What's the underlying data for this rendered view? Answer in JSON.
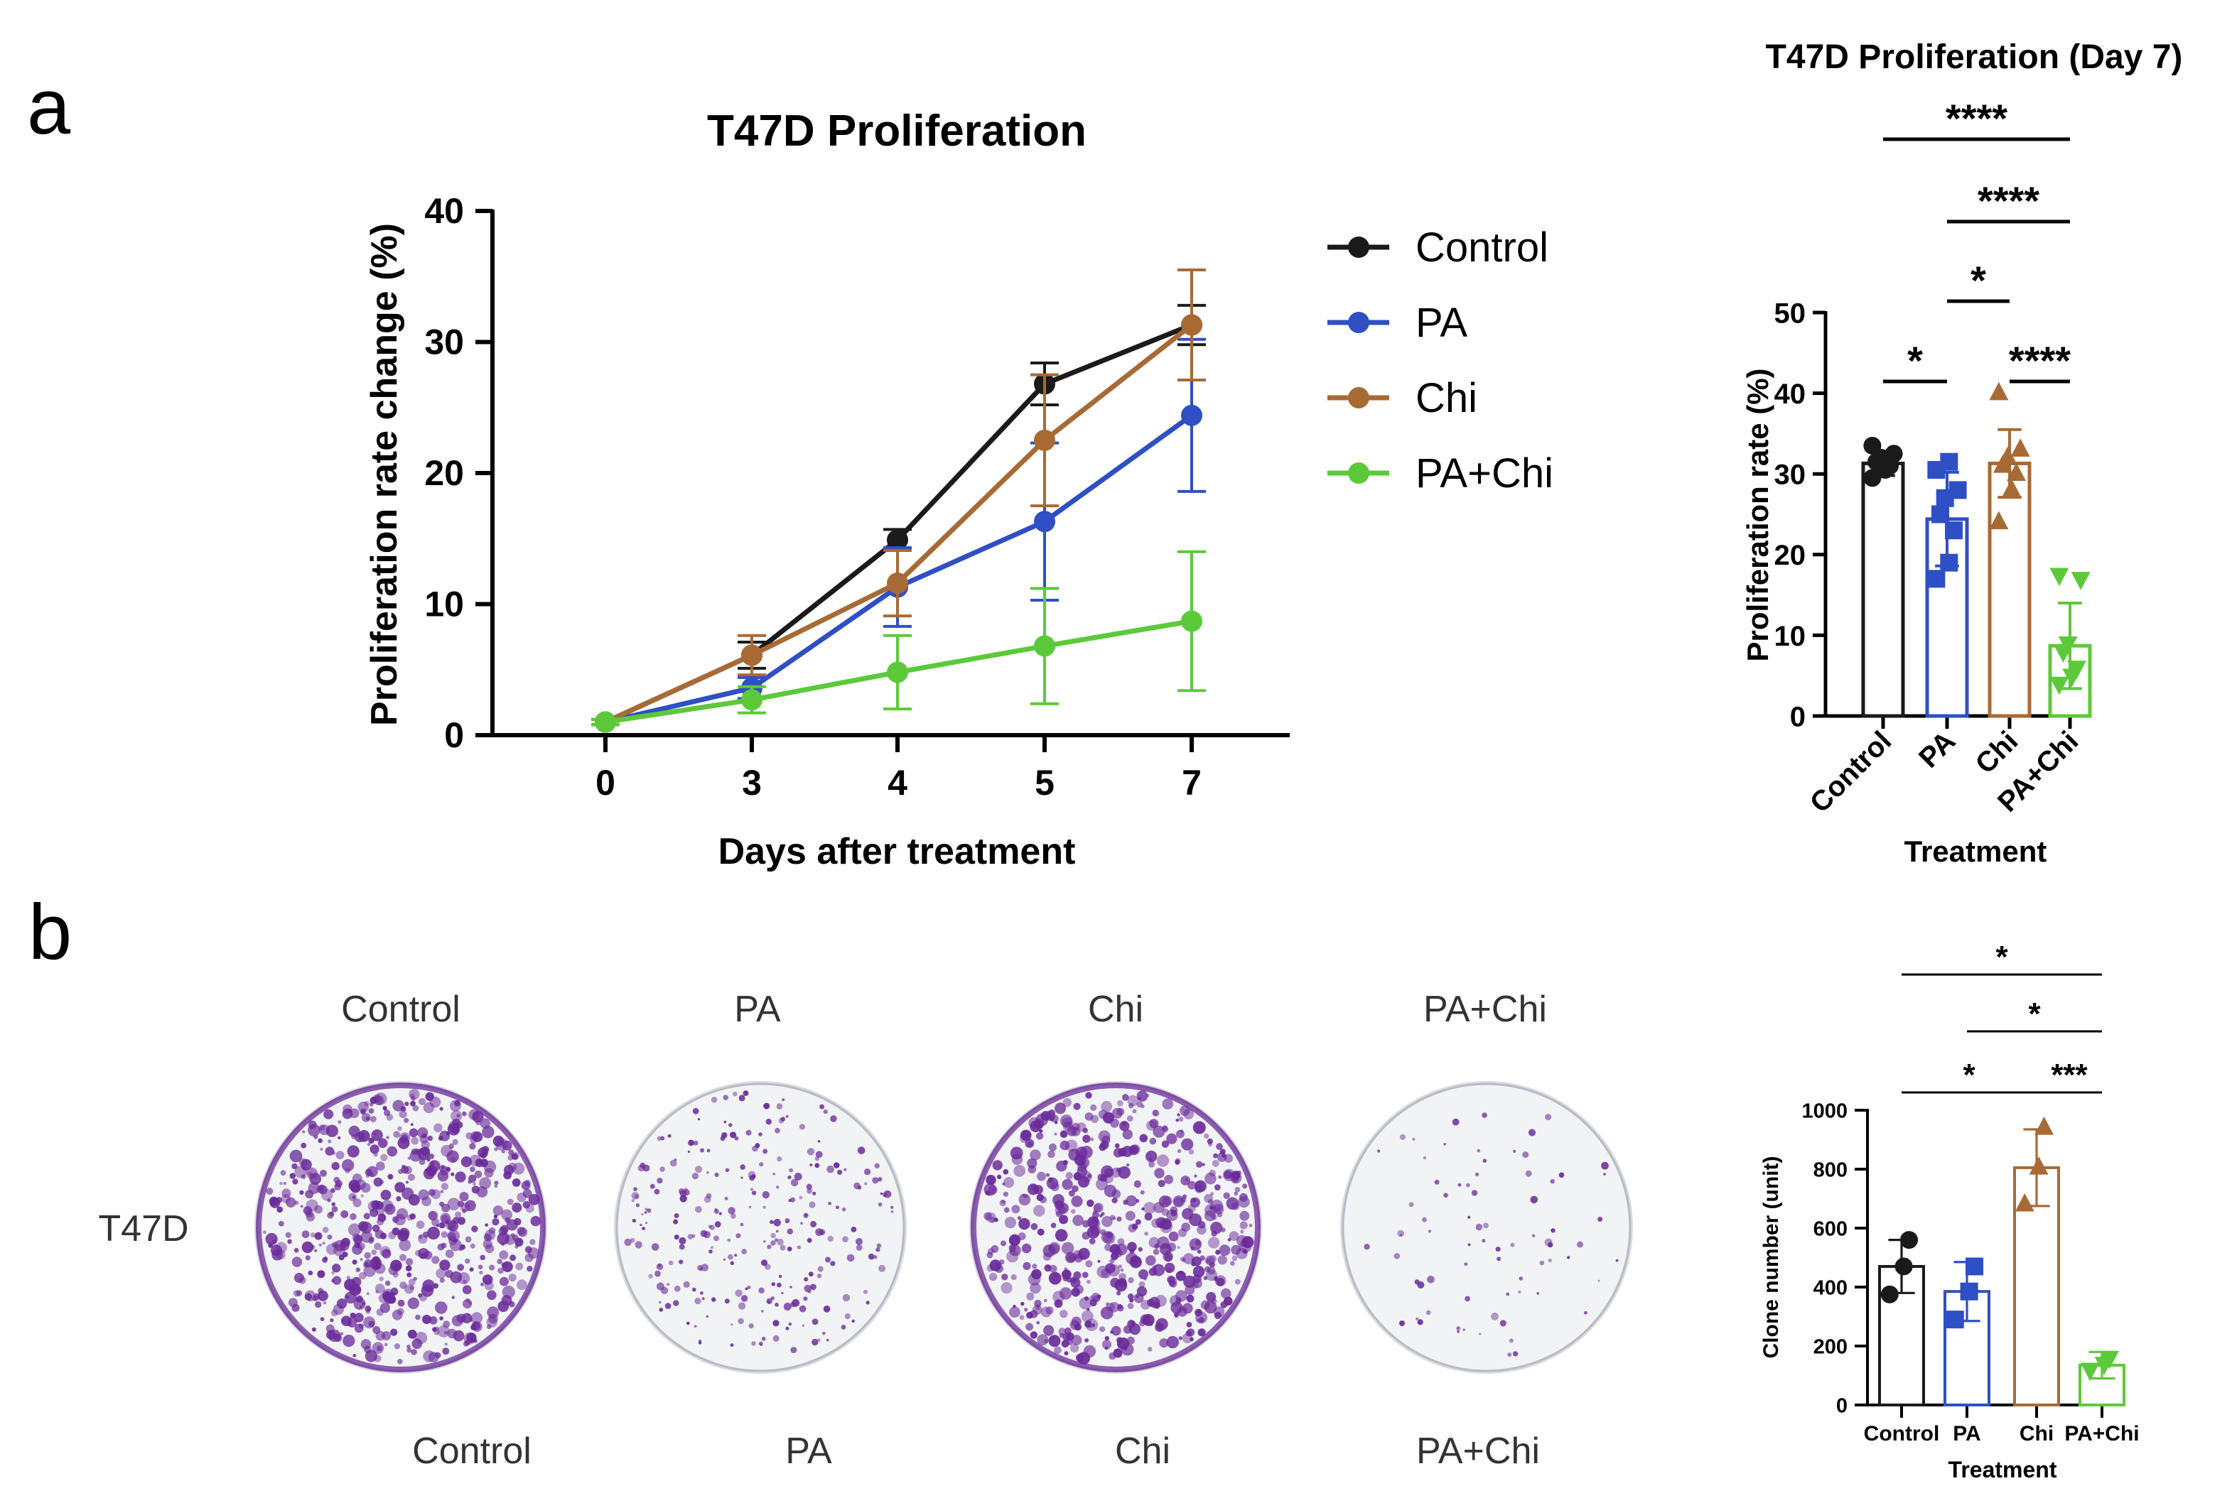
{
  "panel_labels": {
    "a": "a",
    "b": "b"
  },
  "colors": {
    "control": "#1a1a1a",
    "pa": "#2f4fc4",
    "chi": "#a86a35",
    "pachi": "#5cc93a",
    "dish_bg": "#f1f3f4",
    "dish_stain": "#6a2a9a"
  },
  "chart_data": [
    {
      "id": "line",
      "type": "line",
      "title": "T47D Proliferation",
      "xlabel": "Days after treatment",
      "ylabel": "Proliferation rate change (%)",
      "x": [
        "0",
        "3",
        "4",
        "5",
        "7"
      ],
      "ylim": [
        0,
        40
      ],
      "yticks": [
        "0",
        "10",
        "20",
        "30",
        "40"
      ],
      "series": [
        {
          "name": "Control",
          "color_key": "control",
          "values": [
            1,
            6.1,
            14.9,
            26.8,
            31.3
          ],
          "errors": [
            0.2,
            1.0,
            0.8,
            1.6,
            1.5
          ]
        },
        {
          "name": "PA",
          "color_key": "pa",
          "values": [
            1,
            3.6,
            11.3,
            16.3,
            24.4
          ],
          "errors": [
            0.2,
            0.8,
            3.0,
            6.0,
            5.8
          ]
        },
        {
          "name": "Chi",
          "color_key": "chi",
          "values": [
            1,
            6.1,
            11.6,
            22.5,
            31.3
          ],
          "errors": [
            0.2,
            1.5,
            2.5,
            5.0,
            4.2
          ]
        },
        {
          "name": "PA+Chi",
          "color_key": "pachi",
          "values": [
            1,
            2.7,
            4.8,
            6.8,
            8.7
          ],
          "errors": [
            0.2,
            1.0,
            2.8,
            4.4,
            5.3
          ]
        }
      ]
    },
    {
      "id": "bar7",
      "type": "bar",
      "title": "T47D Proliferation (Day 7)",
      "xlabel": "Treatment",
      "ylabel": "Proliferation rate (%)",
      "categories": [
        "Control",
        "PA",
        "Chi",
        "PA+Chi"
      ],
      "color_keys": [
        "control",
        "pa",
        "chi",
        "pachi"
      ],
      "markers": [
        "circle",
        "square",
        "triangle",
        "triangle-down"
      ],
      "ylim": [
        0,
        50
      ],
      "yticks": [
        "0",
        "10",
        "20",
        "30",
        "40",
        "50"
      ],
      "values": [
        31.3,
        24.4,
        31.3,
        8.7
      ],
      "errors": [
        1.5,
        5.8,
        4.2,
        5.3
      ],
      "points": [
        [
          29.5,
          30.5,
          31,
          31.5,
          32,
          32.5,
          33.5
        ],
        [
          17,
          19,
          23,
          25,
          27,
          28,
          30.5,
          31.5
        ],
        [
          24,
          28,
          30,
          31,
          32,
          33,
          40
        ],
        [
          4,
          5,
          6,
          8,
          9,
          17,
          17.5
        ]
      ],
      "significance": [
        {
          "from": 0,
          "to": 3,
          "label": "****"
        },
        {
          "from": 1,
          "to": 3,
          "label": "****"
        },
        {
          "from": 1,
          "to": 2,
          "label": "*"
        },
        {
          "from": 0,
          "to": 1,
          "label": "*"
        },
        {
          "from": 2,
          "to": 3,
          "label": "****"
        }
      ]
    },
    {
      "id": "clone",
      "type": "bar",
      "title": "",
      "xlabel": "Treatment",
      "ylabel": "Clone number (unit)",
      "categories": [
        "Control",
        "PA",
        "Chi",
        "PA+Chi"
      ],
      "color_keys": [
        "control",
        "pa",
        "chi",
        "pachi"
      ],
      "markers": [
        "circle",
        "square",
        "triangle",
        "triangle-down"
      ],
      "ylim": [
        0,
        1000
      ],
      "yticks": [
        "0",
        "200",
        "400",
        "600",
        "800",
        "1000"
      ],
      "values": [
        470,
        385,
        805,
        135
      ],
      "errors": [
        90,
        100,
        130,
        45
      ],
      "points": [
        [
          375,
          470,
          560
        ],
        [
          290,
          385,
          470
        ],
        [
          680,
          805,
          940
        ],
        [
          120,
          140,
          160
        ]
      ],
      "significance": [
        {
          "from": 0,
          "to": 3,
          "label": "*"
        },
        {
          "from": 1,
          "to": 3,
          "label": "*"
        },
        {
          "from": 0,
          "to": 2,
          "label": "*"
        },
        {
          "from": 2,
          "to": 3,
          "label": "***"
        }
      ]
    }
  ],
  "colony": {
    "cell_line": "T47D",
    "top_labels": [
      "Control",
      "PA",
      "Chi",
      "PA+Chi"
    ],
    "bottom_labels": [
      "Control",
      "PA",
      "Chi",
      "PA+Chi"
    ],
    "density": [
      1.0,
      0.45,
      0.95,
      0.12
    ]
  }
}
